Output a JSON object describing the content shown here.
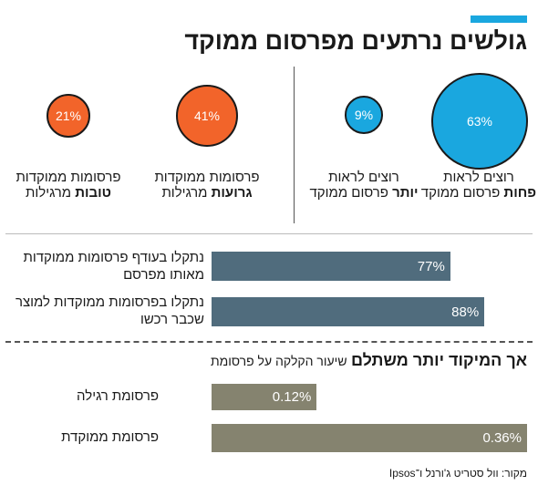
{
  "title": "גולשים נרתעים מפרסום ממוקד",
  "colors": {
    "accent": "#1aa7df",
    "circle_blue": "#1aa7df",
    "circle_orange": "#f2642a",
    "bar_blue": "#506c7d",
    "bar_olive": "#85836f"
  },
  "circles": [
    {
      "value": "63%",
      "pre": "רוצים לראות ",
      "bold": "פחות",
      "post": " פרסום ממוקד"
    },
    {
      "value": "9%",
      "pre": "רוצים לראות ",
      "bold": "יותר",
      "post": " פרסום ממוקד"
    },
    {
      "value": "41%",
      "pre": "פרסומות ממוקדות ",
      "bold": "גרועות",
      "post": " מרגילות"
    },
    {
      "value": "21%",
      "pre": "פרסומות ממוקדות ",
      "bold": "טובות",
      "post": " מרגילות"
    }
  ],
  "upper_bars": [
    {
      "label": "נתקלו בעודף פרסומות ממוקדות מאותו מפרסם",
      "value_label": "77%"
    },
    {
      "label": "נתקלו בפרסומות ממוקדות למוצר שכבר רכשו",
      "value_label": "88%"
    }
  ],
  "subhead": {
    "strong": "אך המיקוד יותר משתלם",
    "light": "שיעור הקלקה על פרסומת"
  },
  "lower_bars": [
    {
      "label": "פרסומת רגילה",
      "value_label": "0.12%"
    },
    {
      "label": "פרסומת ממוקדת",
      "value_label": "0.36%"
    }
  ],
  "source": "מקור: וול סטריט ג'ורנל ו־Ipsos",
  "chart_data": [
    {
      "type": "bubble",
      "categories": [
        "רוצים לראות פחות פרסום ממוקד",
        "רוצים לראות יותר פרסום ממוקד",
        "פרסומות ממוקדות גרועות מרגילות",
        "פרסומות ממוקדות טובות מרגילות"
      ],
      "values": [
        63,
        9,
        41,
        21
      ]
    },
    {
      "type": "bar",
      "categories": [
        "נתקלו בעודף פרסומות ממוקדות מאותו מפרסם",
        "נתקלו בפרסומות ממוקדות למוצר שכבר רכשו"
      ],
      "values": [
        77,
        88
      ],
      "ylim": [
        0,
        100
      ]
    },
    {
      "type": "bar",
      "title": "אך המיקוד יותר משתלם",
      "subtitle": "שיעור הקלקה על פרסומת",
      "categories": [
        "פרסומת רגילה",
        "פרסומת ממוקדת"
      ],
      "values": [
        0.12,
        0.36
      ],
      "ylim": [
        0,
        0.36
      ]
    }
  ]
}
